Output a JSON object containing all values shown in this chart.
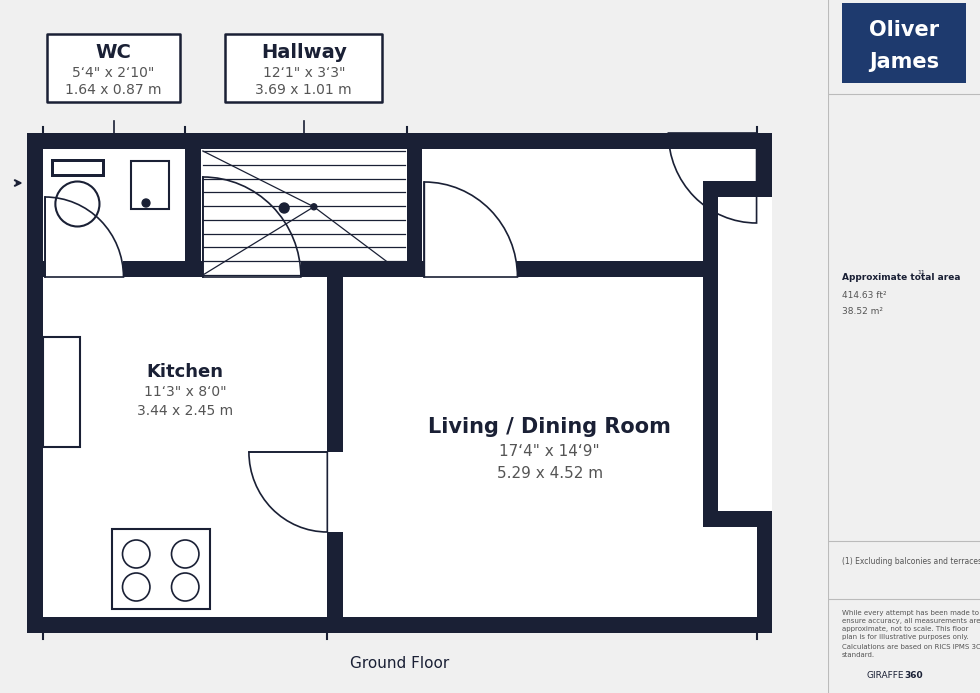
{
  "bg_color": "#f0f0f0",
  "wall_color": "#1a2035",
  "floor_color": "#ffffff",
  "title": "Ground Floor",
  "logo_bg": "#1e3a6e",
  "logo_text1": "Oliver",
  "logo_text2": "James",
  "wc_label": "WC",
  "wc_line1": "5‘4\" x 2‘10\"",
  "wc_line2": "1.64 x 0.87 m",
  "hall_label": "Hallway",
  "hall_line1": "12‘1\" x 3‘3\"",
  "hall_line2": "3.69 x 1.01 m",
  "kitchen_label": "Kitchen",
  "kitchen_line1": "11‘3\" x 8‘0\"",
  "kitchen_line2": "3.44 x 2.45 m",
  "living_label": "Living / Dining Room",
  "living_line1": "17‘4\" x 14‘9\"",
  "living_line2": "5.29 x 4.52 m",
  "area_label": "Approximate total area",
  "area_superscript": "11",
  "area_ft": "414.63 ft²",
  "area_m": "38.52 m²",
  "footnote1": "(1) Excluding balconies and terraces",
  "footnote2": "While every attempt has been made to\nensure accuracy, all measurements are\napproximate, not to scale. This floor\nplan is for illustrative purposes only.",
  "footnote3": "Calculations are based on RICS IPMS 3C\nstandard.",
  "giraffe": "GIRAFFE",
  "giraffe_bold": "360"
}
